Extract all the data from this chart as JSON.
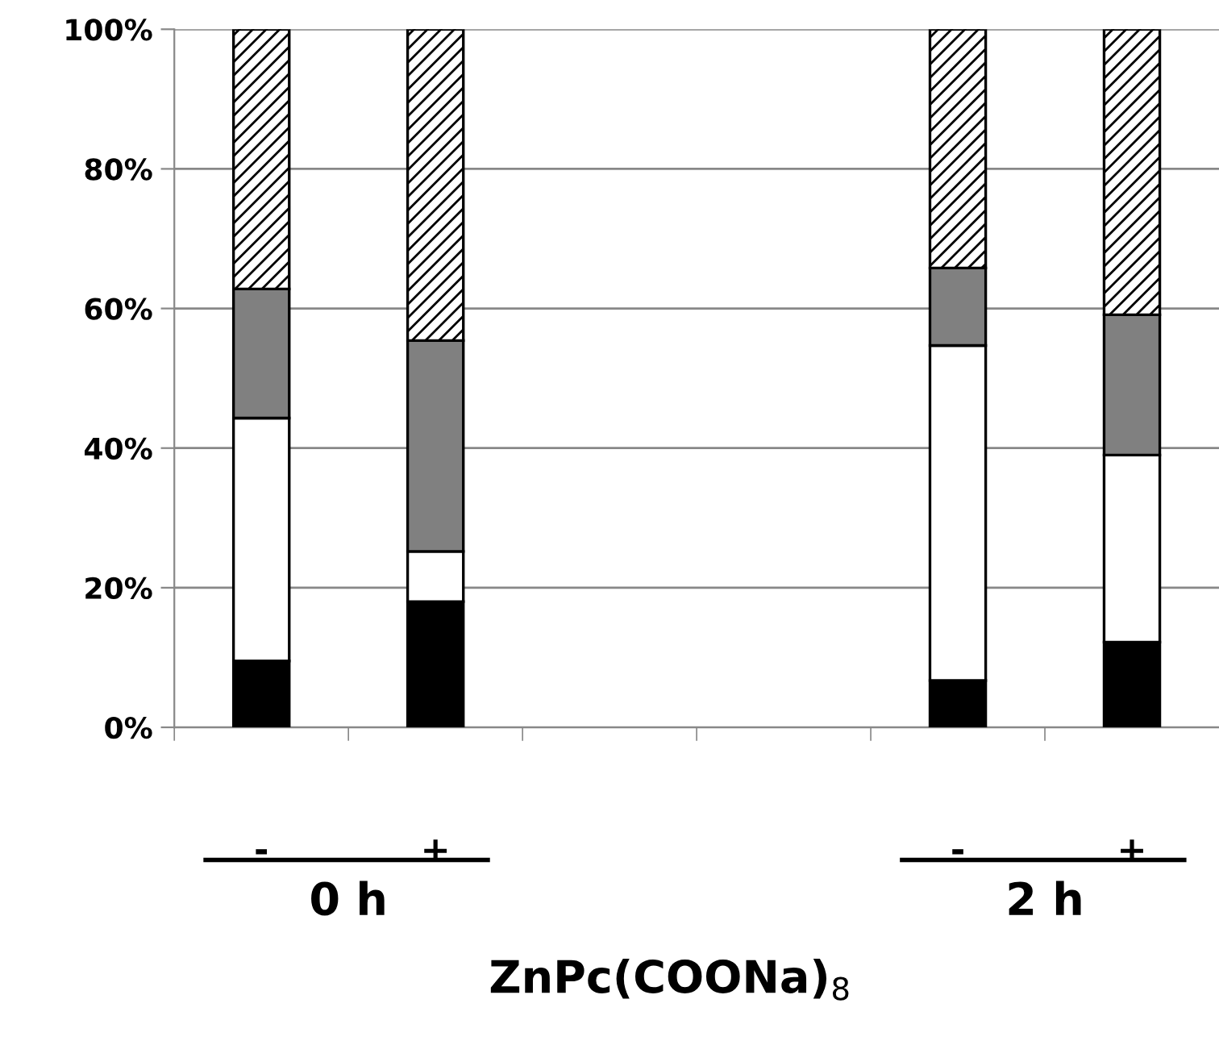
{
  "chart_data": {
    "type": "bar",
    "stacked": true,
    "xlabel": "ZnPc(COONa)$_{8}$",
    "categories": [
      "-",
      "+",
      null,
      null,
      "-",
      "+"
    ],
    "series": [
      {
        "color": "#000000",
        "values": [
          9.5,
          18,
          null,
          null,
          6.7,
          12.2
        ]
      },
      {
        "color": "#ffffff",
        "values": [
          34.8,
          7.2,
          null,
          null,
          48,
          26.8
        ]
      },
      {
        "color": "#808080",
        "values": [
          18.5,
          30.2,
          null,
          null,
          11.1,
          20.1
        ]
      },
      {
        "color": "#000000",
        "values": [
          37.2,
          44.6,
          null,
          null,
          34.2,
          40.9
        ]
      }
    ],
    "ylim": [
      0,
      100
    ],
    "yticks": [
      {
        "value": 0,
        "label": "0%"
      },
      {
        "value": 20,
        "label": "20%"
      },
      {
        "value": 40,
        "label": "40%"
      },
      {
        "value": 60,
        "label": "60%"
      },
      {
        "value": 80,
        "label": "80%"
      },
      {
        "value": 100,
        "label": "100%"
      }
    ],
    "grid": "y",
    "annotations": [
      "0 h",
      "2 h"
    ]
  }
}
